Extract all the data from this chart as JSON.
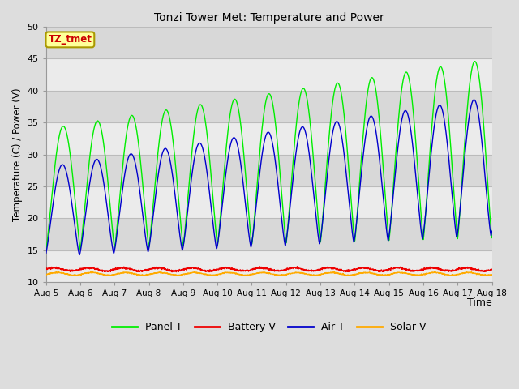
{
  "title": "Tonzi Tower Met: Temperature and Power",
  "xlabel": "Time",
  "ylabel": "Temperature (C) / Power (V)",
  "ylim": [
    10,
    50
  ],
  "yticks": [
    10,
    15,
    20,
    25,
    30,
    35,
    40,
    45,
    50
  ],
  "label_box": "TZ_tmet",
  "label_box_color": "#ffff99",
  "label_box_text_color": "#cc0000",
  "bg_color": "#dddddd",
  "plot_bg_light": "#ebebeb",
  "plot_bg_dark": "#d8d8d8",
  "grid_color": "#cccccc",
  "colors": {
    "Panel T": "#00ee00",
    "Battery V": "#ee0000",
    "Air T": "#0000cc",
    "Solar V": "#ffaa00"
  },
  "xtick_labels": [
    "Aug 5",
    "Aug 6",
    "Aug 7",
    "Aug 8",
    "Aug 9",
    "Aug 10",
    "Aug 11",
    "Aug 12",
    "Aug 13",
    "Aug 14",
    "Aug 15",
    "Aug 16",
    "Aug 17",
    "Aug 18"
  ],
  "xtick_positions": [
    0,
    1,
    2,
    3,
    4,
    5,
    6,
    7,
    8,
    9,
    10,
    11,
    12,
    13
  ]
}
